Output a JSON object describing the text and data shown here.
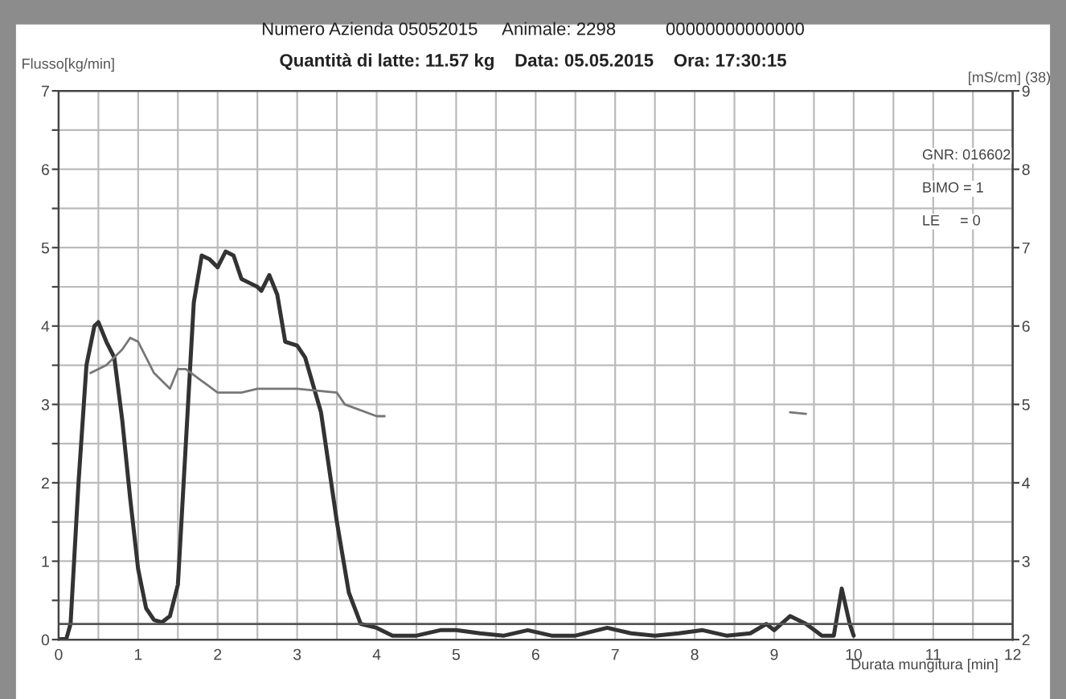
{
  "chart_data": {
    "type": "line",
    "title": "Numero Azienda 05052015     Animale: 2298          00000000000000",
    "subtitle": "Quantità di latte: 11.57 kg    Data: 05.05.2015    Ora: 17:30:15",
    "xlabel": "Durata mungitura [min]",
    "ylabel": "Flusso[kg/min]",
    "y2label": "[mS/cm] (38)",
    "annotations": [
      "GNR: 016602",
      "BIMO = 1",
      "LE     = 0"
    ],
    "series": [
      {
        "color": "#333333",
        "x": [
          0,
          0.1,
          0.15,
          0.25,
          0.35,
          0.45,
          0.5,
          0.6,
          0.7,
          0.8,
          0.9,
          1.0,
          1.1,
          1.2,
          1.3,
          1.4,
          1.5,
          1.6,
          1.7,
          1.8,
          1.9,
          2.0,
          2.1,
          2.2,
          2.3,
          2.4,
          2.5,
          2.55,
          2.65,
          2.75,
          2.85,
          3.0,
          3.1,
          3.3,
          3.5,
          3.65,
          3.8,
          4.0,
          4.2,
          4.5,
          4.8,
          5.0,
          5.3,
          5.6,
          5.9,
          6.2,
          6.5,
          6.9,
          7.2,
          7.5,
          7.8,
          8.1,
          8.4,
          8.7,
          8.9,
          9.0,
          9.2,
          9.4,
          9.6,
          9.75,
          9.85,
          9.95,
          10.0
        ],
        "values": [
          0,
          0.02,
          0.2,
          2,
          3.5,
          4.0,
          4.05,
          3.8,
          3.6,
          2.8,
          1.8,
          0.9,
          0.4,
          0.25,
          0.22,
          0.3,
          0.7,
          2.5,
          4.3,
          4.9,
          4.85,
          4.75,
          4.95,
          4.9,
          4.6,
          4.55,
          4.5,
          4.45,
          4.65,
          4.4,
          3.8,
          3.75,
          3.6,
          2.9,
          1.5,
          0.6,
          0.2,
          0.15,
          0.05,
          0.05,
          0.12,
          0.12,
          0.08,
          0.05,
          0.12,
          0.05,
          0.05,
          0.15,
          0.08,
          0.05,
          0.08,
          0.12,
          0.05,
          0.08,
          0.2,
          0.12,
          0.3,
          0.2,
          0.05,
          0.05,
          0.65,
          0.2,
          0.05
        ]
      },
      {
        "color": "#777777",
        "axis": "y2",
        "x": [
          0.4,
          0.6,
          0.8,
          0.9,
          1.0,
          1.2,
          1.4,
          1.5,
          1.6,
          1.8,
          2.0,
          2.3,
          2.5,
          3.0,
          3.5,
          3.6,
          4.0,
          4.1,
          4.2,
          9.2,
          9.4
        ],
        "values": [
          5.4,
          5.5,
          5.7,
          5.85,
          5.8,
          5.4,
          5.2,
          5.45,
          5.45,
          5.3,
          5.15,
          5.15,
          5.2,
          5.2,
          5.15,
          5.0,
          4.85,
          4.85,
          null,
          4.9,
          4.88
        ]
      }
    ],
    "xlim": [
      0,
      12
    ],
    "ylim": [
      0,
      7
    ],
    "y2lim": [
      2,
      9
    ],
    "xticks": [
      0,
      {
        "value": 0.5,
        "label": null
      },
      1,
      {
        "value": 1.5,
        "label": null
      },
      2,
      {
        "value": 2.5,
        "label": null
      },
      3,
      {
        "value": 3.5,
        "label": null
      },
      4,
      {
        "value": 4.5,
        "label": null
      },
      5,
      {
        "value": 5.5,
        "label": null
      },
      6,
      {
        "value": 6.5,
        "label": null
      },
      7,
      {
        "value": 7.5,
        "label": null
      },
      8,
      {
        "value": 8.5,
        "label": null
      },
      9,
      {
        "value": 9.5,
        "label": null
      },
      10,
      {
        "value": 10.5,
        "label": null
      },
      11,
      {
        "value": 11.5,
        "label": null
      },
      12
    ],
    "yticks": [
      0,
      {
        "value": 0.5,
        "label": null
      },
      1,
      {
        "value": 1.5,
        "label": null
      },
      2,
      {
        "value": 2.5,
        "label": null
      },
      3,
      {
        "value": 3.5,
        "label": null
      },
      4,
      {
        "value": 4.5,
        "label": null
      },
      5,
      {
        "value": 5.5,
        "label": null
      },
      6,
      {
        "value": 6.5,
        "label": null
      },
      7
    ],
    "y2ticks": [
      2,
      3,
      4,
      5,
      6,
      7,
      8,
      9
    ],
    "ref_lines": [
      {
        "axis": "y",
        "value": 0.2,
        "color": "#555555"
      }
    ],
    "grid": true,
    "legend": false,
    "line_style": "solid",
    "marker": "none"
  }
}
